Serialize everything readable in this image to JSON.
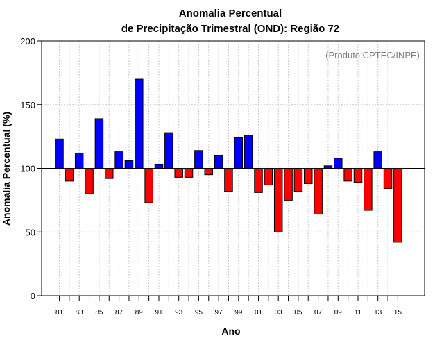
{
  "chart_data": {
    "type": "bar",
    "title_line1": "Anomalia Percentual",
    "title_line2": "de Precipitação Trimestral (OND): Região 72",
    "xlabel": "Ano",
    "ylabel": "Anomalia Percentual (%)",
    "credit": "(Produto:CPTEC/INPE)",
    "baseline": 100,
    "ylim": [
      0,
      200
    ],
    "yticks": [
      "0",
      "50",
      "100",
      "150",
      "200"
    ],
    "categories": [
      "81",
      "82",
      "83",
      "84",
      "85",
      "86",
      "87",
      "88",
      "89",
      "90",
      "91",
      "92",
      "93",
      "94",
      "95",
      "96",
      "97",
      "98",
      "99",
      "00",
      "01",
      "02",
      "03",
      "04",
      "05",
      "06",
      "07",
      "08",
      "09",
      "10",
      "11",
      "12",
      "13",
      "14",
      "15"
    ],
    "xtick_labels": [
      "81",
      "83",
      "85",
      "87",
      "89",
      "91",
      "93",
      "95",
      "97",
      "99",
      "01",
      "03",
      "05",
      "07",
      "09",
      "11",
      "13",
      "15"
    ],
    "values": [
      123,
      90,
      112,
      80,
      139,
      92,
      113,
      106,
      170,
      73,
      103,
      128,
      93,
      93,
      114,
      95,
      110,
      82,
      124,
      126,
      81,
      87,
      50,
      75,
      82,
      88,
      64,
      102,
      108,
      90,
      89,
      67,
      113,
      84,
      42
    ],
    "colors": {
      "above": "#0000ff",
      "below": "#ff0000",
      "grid": "#c8c8c8"
    }
  }
}
